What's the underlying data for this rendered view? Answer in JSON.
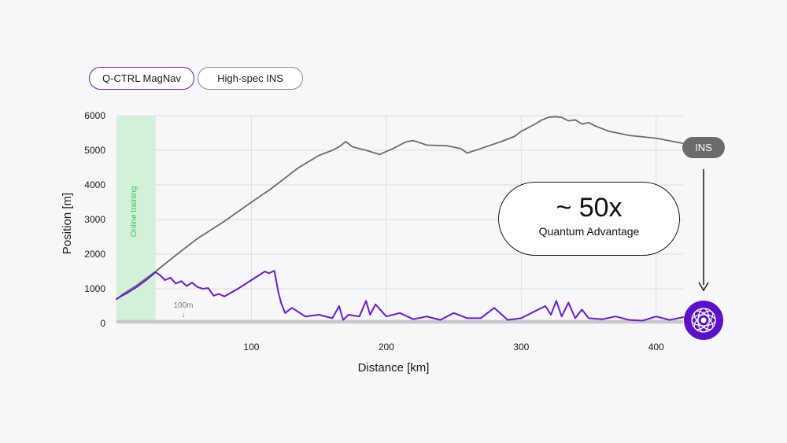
{
  "legend": {
    "magnav_label": "Q-CTRL MagNav",
    "ins_label": "High-spec INS"
  },
  "annotations": {
    "online_training": "Online training",
    "hundred_m": "100m",
    "hundred_m_arrow": "↓",
    "advantage_big": "~ 50x",
    "advantage_small": "Quantum Advantage",
    "ins_tag": "INS"
  },
  "colors": {
    "magnav": "#6a1bd6",
    "ins": "#6b6b6b",
    "training_band": "#d3f0d8",
    "reference_band": "#c9c7cc",
    "grid": "#dedde2"
  },
  "icons": {
    "logo": "qctrl-logo-icon",
    "arrow": "down-arrow-icon"
  },
  "chart_data": {
    "type": "line",
    "title": "",
    "xlabel": "Distance [km]",
    "ylabel": "Position [m]",
    "xlim": [
      0,
      420
    ],
    "ylim": [
      0,
      6000
    ],
    "xticks": [
      100,
      200,
      300,
      400
    ],
    "yticks": [
      0,
      1000,
      2000,
      3000,
      4000,
      5000,
      6000
    ],
    "grid": true,
    "training_region": [
      0,
      29
    ],
    "reference_band_m": 100,
    "series": [
      {
        "name": "High-spec INS",
        "x": [
          0,
          5,
          15,
          29,
          45,
          60,
          80,
          100,
          115,
          125,
          135,
          150,
          160,
          165,
          170,
          175,
          185,
          195,
          205,
          215,
          220,
          230,
          245,
          255,
          260,
          270,
          285,
          295,
          300,
          310,
          315,
          320,
          325,
          330,
          335,
          340,
          345,
          350,
          355,
          365,
          380,
          400,
          420
        ],
        "values": [
          700,
          850,
          1100,
          1500,
          2000,
          2450,
          2950,
          3500,
          3900,
          4200,
          4500,
          4850,
          5000,
          5100,
          5250,
          5100,
          5000,
          4880,
          5050,
          5250,
          5280,
          5150,
          5130,
          5050,
          4920,
          5050,
          5250,
          5400,
          5550,
          5750,
          5870,
          5950,
          5970,
          5950,
          5850,
          5880,
          5760,
          5800,
          5700,
          5550,
          5430,
          5350,
          5200
        ]
      },
      {
        "name": "Q-CTRL MagNav",
        "x": [
          0,
          4,
          8,
          15,
          22,
          29,
          32,
          36,
          40,
          44,
          48,
          52,
          56,
          60,
          64,
          68,
          72,
          76,
          80,
          90,
          100,
          110,
          113,
          117,
          120,
          122,
          125,
          130,
          140,
          150,
          160,
          165,
          168,
          172,
          180,
          185,
          188,
          192,
          200,
          210,
          220,
          230,
          240,
          250,
          260,
          270,
          280,
          290,
          300,
          310,
          318,
          322,
          326,
          330,
          335,
          340,
          345,
          350,
          360,
          370,
          380,
          390,
          400,
          410,
          420
        ],
        "values": [
          700,
          800,
          880,
          1050,
          1250,
          1480,
          1400,
          1250,
          1320,
          1150,
          1220,
          1080,
          1180,
          1050,
          1000,
          1020,
          800,
          850,
          780,
          1000,
          1250,
          1500,
          1450,
          1520,
          900,
          600,
          300,
          450,
          200,
          250,
          150,
          500,
          100,
          250,
          200,
          650,
          250,
          550,
          200,
          300,
          120,
          200,
          100,
          300,
          150,
          150,
          450,
          100,
          150,
          350,
          500,
          250,
          650,
          200,
          600,
          150,
          400,
          150,
          120,
          200,
          100,
          80,
          200,
          100,
          180
        ]
      }
    ]
  }
}
